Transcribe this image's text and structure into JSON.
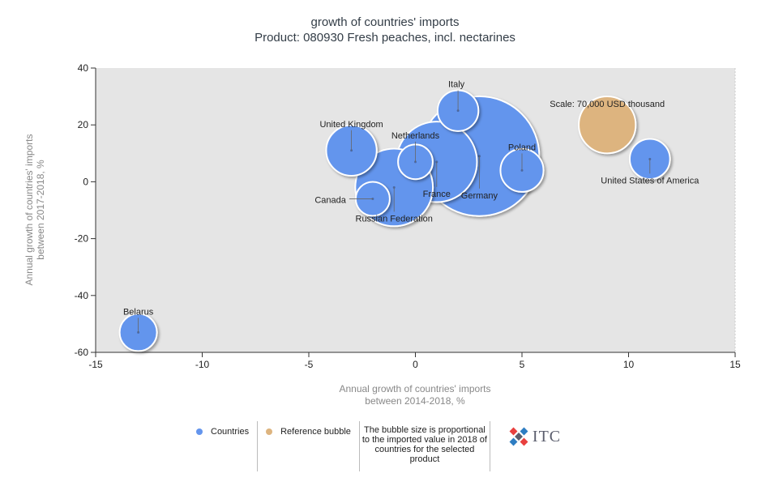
{
  "title_line1": "growth of countries' imports",
  "title_line2": "Product: 080930 Fresh peaches, incl. nectarines",
  "colors": {
    "countries": "#6495ed",
    "reference": "#ddb47f",
    "plot_bg": "#e5e5e5"
  },
  "chart_data": {
    "type": "scatter",
    "title": "growth of countries' imports",
    "subtitle": "Product: 080930 Fresh peaches, incl. nectarines",
    "xlabel": "Annual growth of countries' imports between 2014-2018, %",
    "ylabel": "Annual growth of countries' imports between 2017-2018, %",
    "xlim": [
      -15,
      15
    ],
    "ylim": [
      -60,
      40
    ],
    "xticks": [
      -15,
      -10,
      -5,
      0,
      5,
      10,
      15
    ],
    "yticks": [
      40,
      20,
      0,
      -20,
      -40,
      -60
    ],
    "grid": false,
    "legend_position": "bottom",
    "series": [
      {
        "name": "Countries",
        "points": [
          {
            "label": "Italy",
            "x": 2,
            "y": 25,
            "size": 36000
          },
          {
            "label": "United Kingdom",
            "x": -3,
            "y": 11,
            "size": 55000
          },
          {
            "label": "Netherlands",
            "x": 0,
            "y": 7,
            "size": 26000
          },
          {
            "label": "France",
            "x": 1,
            "y": 7,
            "size": 140000
          },
          {
            "label": "Germany",
            "x": 3,
            "y": 9,
            "size": 310000
          },
          {
            "label": "Poland",
            "x": 5,
            "y": 4,
            "size": 40000
          },
          {
            "label": "United States of America",
            "x": 11,
            "y": 8,
            "size": 35000
          },
          {
            "label": "Canada",
            "x": -2,
            "y": -6,
            "size": 25000
          },
          {
            "label": "Russian Federation",
            "x": -1,
            "y": -2,
            "size": 130000
          },
          {
            "label": "Belarus",
            "x": -13,
            "y": -53,
            "size": 30000
          }
        ]
      },
      {
        "name": "Reference bubble",
        "points": [
          {
            "label": "Scale: 70,000 USD thousand",
            "x": 9,
            "y": 20,
            "size": 70000
          }
        ]
      }
    ]
  },
  "legend": {
    "countries": "Countries",
    "reference": "Reference bubble",
    "note": "The bubble size is proportional to the imported value in 2018 of countries for the selected product"
  },
  "logo_text": "ITC"
}
